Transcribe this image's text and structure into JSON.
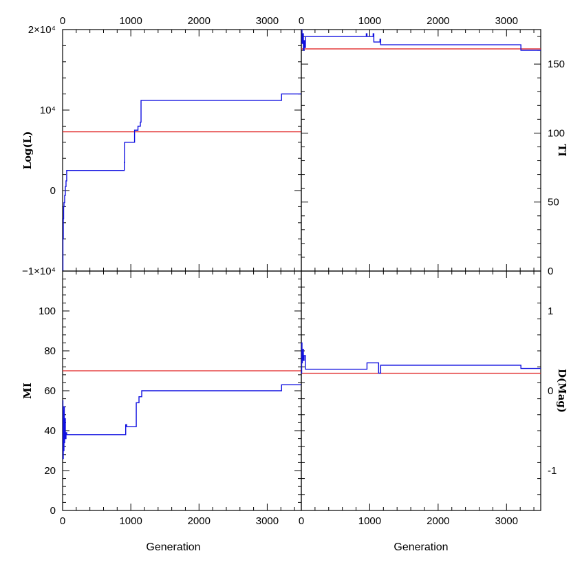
{
  "chart_data": [
    {
      "id": "loglik",
      "type": "line",
      "title": "",
      "xlabel": "",
      "ylabel": "Log(L)",
      "xlim": [
        0,
        3500
      ],
      "ylim": [
        -10000,
        20000
      ],
      "x_ticks": [
        0,
        1000,
        2000,
        3000
      ],
      "y_ticks": [
        {
          "value": -10000,
          "label": "−1×10⁴"
        },
        {
          "value": 0,
          "label": "0"
        },
        {
          "value": 10000,
          "label": "10⁴"
        },
        {
          "value": 20000,
          "label": "2×10⁴"
        }
      ],
      "reference": {
        "value": 7300,
        "color": "#e02020"
      },
      "series": [
        {
          "color": "#1010e0",
          "x": [
            0,
            5,
            10,
            15,
            20,
            30,
            40,
            50,
            60,
            900,
            905,
            910,
            1050,
            1055,
            1100,
            1105,
            1140,
            1150,
            1160,
            3200,
            3210,
            3500
          ],
          "y": [
            -10000,
            -6000,
            -3500,
            -2000,
            -1500,
            -600,
            500,
            1200,
            2500,
            2500,
            3500,
            6000,
            6000,
            7500,
            7500,
            8000,
            8500,
            11200,
            11200,
            11200,
            12000,
            12000
          ]
        }
      ]
    },
    {
      "id": "ti",
      "type": "line",
      "title": "",
      "xlabel": "",
      "ylabel": "TI",
      "xlim": [
        0,
        3500
      ],
      "ylim": [
        0,
        175
      ],
      "x_ticks": [
        0,
        1000,
        2000,
        3000
      ],
      "y_ticks": [
        {
          "value": 0,
          "label": "0"
        },
        {
          "value": 50,
          "label": "50"
        },
        {
          "value": 100,
          "label": "100"
        },
        {
          "value": 150,
          "label": "150"
        }
      ],
      "reference": {
        "value": 161,
        "color": "#e02020"
      },
      "series": [
        {
          "color": "#1010e0",
          "x": [
            0,
            10,
            20,
            30,
            40,
            50,
            60,
            940,
            950,
            960,
            1050,
            1060,
            1140,
            1150,
            1160,
            3200,
            3210,
            3500
          ],
          "y": [
            175,
            165,
            172,
            160,
            167,
            162,
            170,
            170,
            172,
            170,
            172,
            166,
            166,
            168,
            164,
            164,
            160,
            160
          ]
        }
      ]
    },
    {
      "id": "mi",
      "type": "line",
      "title": "",
      "xlabel": "Generation",
      "ylabel": "MI",
      "xlim": [
        0,
        3500
      ],
      "ylim": [
        0,
        120
      ],
      "x_ticks": [
        0,
        1000,
        2000,
        3000
      ],
      "y_ticks": [
        {
          "value": 0,
          "label": "0"
        },
        {
          "value": 20,
          "label": "20"
        },
        {
          "value": 40,
          "label": "40"
        },
        {
          "value": 60,
          "label": "60"
        },
        {
          "value": 80,
          "label": "80"
        },
        {
          "value": 100,
          "label": "100"
        }
      ],
      "reference": {
        "value": 70,
        "color": "#e02020"
      },
      "series": [
        {
          "color": "#1010e0",
          "x": [
            0,
            5,
            10,
            15,
            20,
            25,
            30,
            40,
            50,
            60,
            920,
            925,
            940,
            1070,
            1080,
            1110,
            1120,
            1150,
            1160,
            3200,
            3210,
            3500
          ],
          "y": [
            55,
            26,
            50,
            30,
            52,
            34,
            46,
            36,
            39,
            38,
            38,
            43,
            42,
            42,
            54,
            54,
            57,
            57,
            60,
            60,
            63,
            63
          ]
        }
      ]
    },
    {
      "id": "dmag",
      "type": "line",
      "title": "",
      "xlabel": "Generation",
      "ylabel": "D(Mag)",
      "xlim": [
        0,
        3500
      ],
      "ylim": [
        -1.5,
        1.5
      ],
      "x_ticks": [
        0,
        1000,
        2000,
        3000
      ],
      "y_ticks": [
        {
          "value": -1,
          "label": "-1"
        },
        {
          "value": 0,
          "label": "0"
        },
        {
          "value": 1,
          "label": "1"
        }
      ],
      "reference": {
        "value": 0.22,
        "color": "#e02020"
      },
      "series": [
        {
          "color": "#1010e0",
          "x": [
            0,
            5,
            10,
            15,
            20,
            25,
            30,
            40,
            60,
            940,
            960,
            1120,
            1130,
            1150,
            1160,
            3200,
            3210,
            3500
          ],
          "y": [
            0.22,
            0.6,
            0.35,
            0.48,
            0.4,
            0.52,
            0.38,
            0.44,
            0.27,
            0.27,
            0.35,
            0.35,
            0.22,
            0.22,
            0.32,
            0.32,
            0.28,
            0.28
          ]
        }
      ]
    }
  ]
}
